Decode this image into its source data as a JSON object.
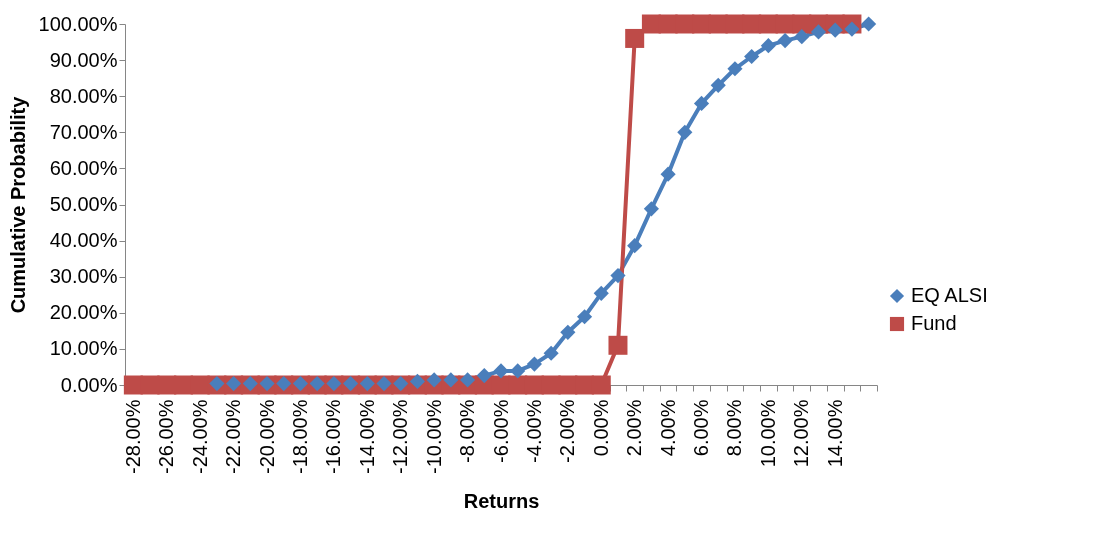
{
  "chart_data": {
    "type": "line",
    "xlabel": "Returns",
    "ylabel": "Cumulative Probability",
    "categories": [
      "-28.00%",
      null,
      "-26.00%",
      null,
      "-24.00%",
      null,
      "-22.00%",
      null,
      "-20.00%",
      null,
      "-18.00%",
      null,
      "-16.00%",
      null,
      "-14.00%",
      null,
      "-12.00%",
      null,
      "-10.00%",
      null,
      "-8.00%",
      null,
      "-6.00%",
      null,
      "-4.00%",
      null,
      "-2.00%",
      null,
      "0.00%",
      null,
      "2.00%",
      null,
      "4.00%",
      null,
      "6.00%",
      null,
      "8.00%",
      null,
      "10.00%",
      null,
      "12.00%",
      null,
      "14.00%",
      null,
      null
    ],
    "series": [
      {
        "name": "EQ ALSI",
        "color": "#4a7ebb",
        "marker": "diamond",
        "values": [
          null,
          null,
          null,
          null,
          null,
          0.4,
          0.4,
          0.4,
          0.4,
          0.4,
          0.4,
          0.4,
          0.4,
          0.4,
          0.4,
          0.4,
          0.4,
          1,
          1.4,
          1.4,
          1.4,
          2.6,
          3.9,
          3.9,
          5.8,
          8.8,
          14.6,
          18.9,
          25.4,
          30.3,
          38.6,
          48.8,
          58.4,
          70,
          78,
          83,
          87.6,
          91,
          94,
          95.4,
          96.5,
          97.8,
          98.3,
          98.6,
          100
        ]
      },
      {
        "name": "Fund",
        "color": "#be4b48",
        "marker": "square",
        "values": [
          0,
          0,
          0,
          0,
          0,
          0,
          0,
          0,
          0,
          0,
          0,
          0,
          0,
          0,
          0,
          0,
          0,
          0,
          0,
          0,
          0,
          0,
          0,
          0,
          0,
          0,
          0,
          0,
          0,
          11,
          96,
          100,
          100,
          100,
          100,
          100,
          100,
          100,
          100,
          100,
          100,
          100,
          100,
          100,
          null
        ]
      }
    ],
    "ylim": [
      0,
      100
    ],
    "yticks": [
      {
        "value": 0,
        "label": "0.00%"
      },
      {
        "value": 10,
        "label": "10.00%"
      },
      {
        "value": 20,
        "label": "20.00%"
      },
      {
        "value": 30,
        "label": "30.00%"
      },
      {
        "value": 40,
        "label": "40.00%"
      },
      {
        "value": 50,
        "label": "50.00%"
      },
      {
        "value": 60,
        "label": "60.00%"
      },
      {
        "value": 70,
        "label": "70.00%"
      },
      {
        "value": 80,
        "label": "80.00%"
      },
      {
        "value": 90,
        "label": "90.00%"
      },
      {
        "value": 100,
        "label": "100.00%"
      }
    ],
    "legend": "right"
  }
}
